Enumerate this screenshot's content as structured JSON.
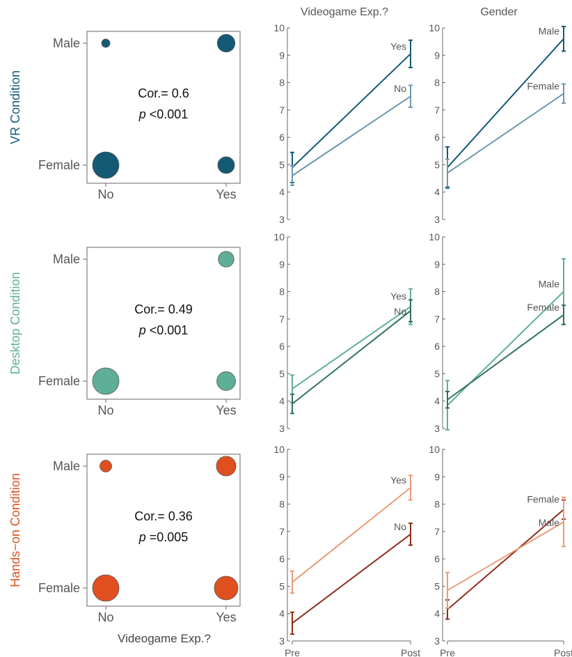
{
  "labels": {
    "col_header_left": "Videogame Exp.?",
    "col_header_right": "Gender",
    "bottom_xlabel": "Videogame Exp.?"
  },
  "colors": {
    "vr_dark": "#145a74",
    "vr_light": "#6a98ab",
    "desktop_light": "#5fae98",
    "desktop_dark": "#2f7060",
    "hands_light": "#ec9a76",
    "hands_dark": "#8c2e17",
    "hands_bubble": "#e0501f",
    "axis": "#666666",
    "text": "#555555"
  },
  "chart_data": [
    {
      "type": "scatter",
      "variant": "bubble",
      "condition": "VR Condition",
      "row_label": "VR Condition",
      "x_categories": [
        "No",
        "Yes"
      ],
      "y_categories": [
        "Female",
        "Male"
      ],
      "points": [
        {
          "x": "No",
          "y": "Male",
          "size": 0.1
        },
        {
          "x": "Yes",
          "y": "Male",
          "size": 0.45
        },
        {
          "x": "No",
          "y": "Female",
          "size": 1.0
        },
        {
          "x": "Yes",
          "y": "Female",
          "size": 0.4
        }
      ],
      "annotation": "Cor.= 0.6",
      "p_label": "p",
      "p_value": "<0.001",
      "color": "#145a74"
    },
    {
      "type": "line",
      "condition": "VR Condition",
      "title": "Videogame Exp.?",
      "x": [
        "Pre Score",
        "Post Score"
      ],
      "ylim": [
        3,
        10
      ],
      "yticks": [
        3,
        4,
        5,
        6,
        7,
        8,
        9,
        10
      ],
      "series": [
        {
          "name": "Yes",
          "values": [
            4.9,
            9.05
          ],
          "err": [
            0.55,
            0.5
          ],
          "color": "#145a74"
        },
        {
          "name": "No",
          "values": [
            4.6,
            7.5
          ],
          "err": [
            0.35,
            0.4
          ],
          "color": "#6a98ab"
        }
      ]
    },
    {
      "type": "line",
      "condition": "VR Condition",
      "title": "Gender",
      "x": [
        "Pre Score",
        "Post Score"
      ],
      "ylim": [
        3,
        10
      ],
      "yticks": [
        3,
        4,
        5,
        6,
        7,
        8,
        9,
        10
      ],
      "series": [
        {
          "name": "Male",
          "values": [
            4.9,
            9.6
          ],
          "err": [
            0.75,
            0.45
          ],
          "color": "#145a74"
        },
        {
          "name": "Female",
          "values": [
            4.7,
            7.6
          ],
          "err": [
            0.5,
            0.35
          ],
          "color": "#6a98ab"
        }
      ]
    },
    {
      "type": "scatter",
      "variant": "bubble",
      "condition": "Desktop Condition",
      "row_label": "Desktop Condition",
      "x_categories": [
        "No",
        "Yes"
      ],
      "y_categories": [
        "Female",
        "Male"
      ],
      "points": [
        {
          "x": "No",
          "y": "Male",
          "size": 0.0
        },
        {
          "x": "Yes",
          "y": "Male",
          "size": 0.35
        },
        {
          "x": "No",
          "y": "Female",
          "size": 1.0
        },
        {
          "x": "Yes",
          "y": "Female",
          "size": 0.5
        }
      ],
      "annotation": "Cor.= 0.49",
      "p_label": "p",
      "p_value": "<0.001",
      "color": "#5fae98"
    },
    {
      "type": "line",
      "condition": "Desktop Condition",
      "title": "",
      "x": [
        "Pre Score",
        "Post Score"
      ],
      "ylim": [
        3,
        10
      ],
      "yticks": [
        3,
        4,
        5,
        6,
        7,
        8,
        9,
        10
      ],
      "series": [
        {
          "name": "Yes",
          "values": [
            4.45,
            7.45
          ],
          "err": [
            0.5,
            0.65
          ],
          "color": "#5fae98"
        },
        {
          "name": "No",
          "values": [
            3.9,
            7.3
          ],
          "err": [
            0.35,
            0.4
          ],
          "color": "#2f7060"
        }
      ]
    },
    {
      "type": "line",
      "condition": "Desktop Condition",
      "title": "",
      "x": [
        "Pre Score",
        "Post Score"
      ],
      "ylim": [
        3,
        10
      ],
      "yticks": [
        3,
        4,
        5,
        6,
        7,
        8,
        9,
        10
      ],
      "series": [
        {
          "name": "Male",
          "values": [
            3.85,
            8.0
          ],
          "err": [
            0.9,
            1.2
          ],
          "color": "#5fae98"
        },
        {
          "name": "Female",
          "values": [
            4.05,
            7.15
          ],
          "err": [
            0.3,
            0.35
          ],
          "color": "#2f7060"
        }
      ]
    },
    {
      "type": "scatter",
      "variant": "bubble",
      "condition": "Hands-on Condition",
      "row_label": "Hands−on Condition",
      "x_categories": [
        "No",
        "Yes"
      ],
      "y_categories": [
        "Female",
        "Male"
      ],
      "points": [
        {
          "x": "No",
          "y": "Male",
          "size": 0.2
        },
        {
          "x": "Yes",
          "y": "Male",
          "size": 0.55
        },
        {
          "x": "No",
          "y": "Female",
          "size": 1.0
        },
        {
          "x": "Yes",
          "y": "Female",
          "size": 0.8
        }
      ],
      "annotation": "Cor.= 0.36",
      "p_label": "p",
      "p_value": "=0.005",
      "color": "#e0501f"
    },
    {
      "type": "line",
      "condition": "Hands-on Condition",
      "title": "",
      "x": [
        "Pre Score",
        "Post Score"
      ],
      "ylim": [
        3,
        10
      ],
      "yticks": [
        3,
        4,
        5,
        6,
        7,
        8,
        9,
        10
      ],
      "series": [
        {
          "name": "Yes",
          "values": [
            5.15,
            8.6
          ],
          "err": [
            0.4,
            0.45
          ],
          "color": "#ec9a76"
        },
        {
          "name": "No",
          "values": [
            3.65,
            6.9
          ],
          "err": [
            0.4,
            0.4
          ],
          "color": "#8c2e17"
        }
      ]
    },
    {
      "type": "line",
      "condition": "Hands-on Condition",
      "title": "",
      "x": [
        "Pre Score",
        "Post Score"
      ],
      "ylim": [
        3,
        10
      ],
      "yticks": [
        3,
        4,
        5,
        6,
        7,
        8,
        9,
        10
      ],
      "series": [
        {
          "name": "Female",
          "values": [
            4.15,
            7.8
          ],
          "err": [
            0.35,
            0.35
          ],
          "color": "#8c2e17"
        },
        {
          "name": "Male",
          "values": [
            4.85,
            7.35
          ],
          "err": [
            0.65,
            0.9
          ],
          "color": "#ec9a76"
        }
      ]
    }
  ]
}
